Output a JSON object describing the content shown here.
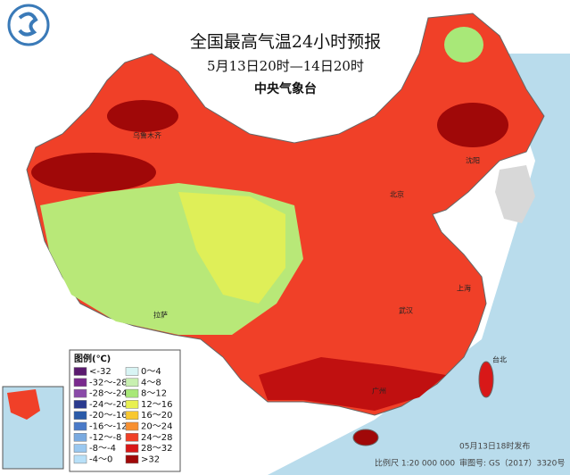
{
  "header": {
    "title": "全国最高气温24小时预报",
    "subtitle": "5月13日20时—14日20时",
    "agency": "中央气象台"
  },
  "legend": {
    "title": "图例(℃)",
    "items": [
      {
        "label": "<-32",
        "color": "#5a1a6e"
      },
      {
        "label": "-32～-28",
        "color": "#7a2a8e"
      },
      {
        "label": "-28～-24",
        "color": "#8a4aa8"
      },
      {
        "label": "-24～-20",
        "color": "#2a3a8e"
      },
      {
        "label": "-20～-16",
        "color": "#2a5aa8"
      },
      {
        "label": "-16～-12",
        "color": "#4a7ac8"
      },
      {
        "label": "-12～-8",
        "color": "#7aaae0"
      },
      {
        "label": "-8～-4",
        "color": "#9ac8f0"
      },
      {
        "label": "-4～0",
        "color": "#b8e0f8"
      },
      {
        "label": "0～4",
        "color": "#d8f4f4"
      },
      {
        "label": "4～8",
        "color": "#c8f0b0"
      },
      {
        "label": "8～12",
        "color": "#a8e878"
      },
      {
        "label": "12～16",
        "color": "#e8f050"
      },
      {
        "label": "16～20",
        "color": "#f8c830"
      },
      {
        "label": "20～24",
        "color": "#f89030"
      },
      {
        "label": "24～28",
        "color": "#f04028"
      },
      {
        "label": "28～32",
        "color": "#d81818"
      },
      {
        "label": ">32",
        "color": "#a00808"
      }
    ]
  },
  "cities": [
    "乌鲁木齐",
    "北京",
    "沈阳",
    "武汉",
    "拉萨",
    "上海",
    "广州",
    "台北"
  ],
  "footer": {
    "issued": "05月13日18时发布",
    "scale": "比例尺 1:20 000 000",
    "review": "审图号: GS（2017）3320号"
  }
}
